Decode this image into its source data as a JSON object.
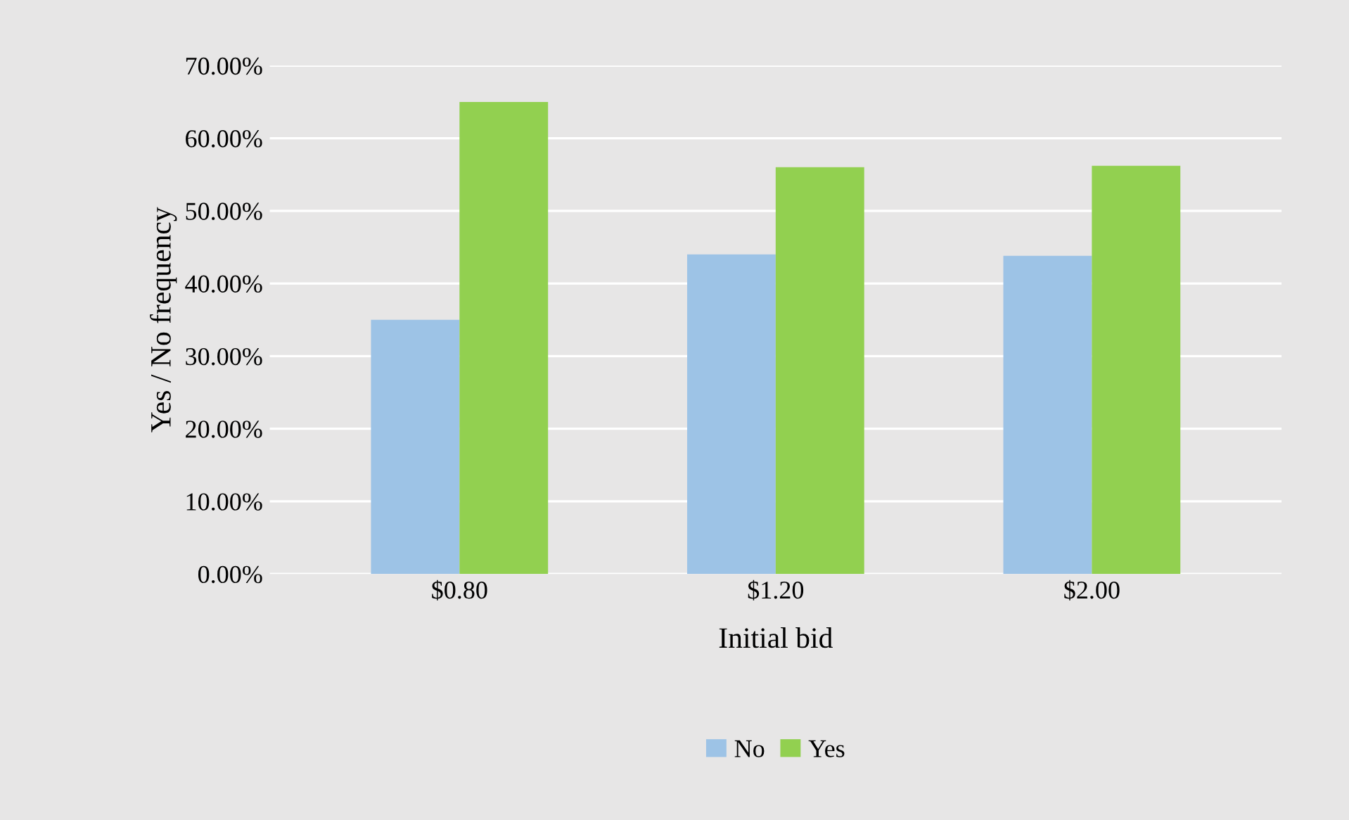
{
  "chart_data": {
    "type": "bar",
    "xlabel": "Initial bid",
    "ylabel": "Yes / No frequency",
    "categories": [
      "$0.80",
      "$1.20",
      "$2.00"
    ],
    "series": [
      {
        "name": "No",
        "color": "#9dc3e6",
        "values": [
          35.0,
          44.0,
          43.8
        ]
      },
      {
        "name": "Yes",
        "color": "#92d050",
        "values": [
          65.0,
          56.0,
          56.2
        ]
      }
    ],
    "ylim": [
      0,
      70
    ],
    "yticks": [
      {
        "value": 0,
        "label": "0.00%"
      },
      {
        "value": 10,
        "label": "10.00%"
      },
      {
        "value": 20,
        "label": "20.00%"
      },
      {
        "value": 30,
        "label": "30.00%"
      },
      {
        "value": 40,
        "label": "40.00%"
      },
      {
        "value": 50,
        "label": "50.00%"
      },
      {
        "value": 60,
        "label": "60.00%"
      },
      {
        "value": 70,
        "label": "70.00%"
      }
    ],
    "grid": "y",
    "legend": "bottom"
  }
}
